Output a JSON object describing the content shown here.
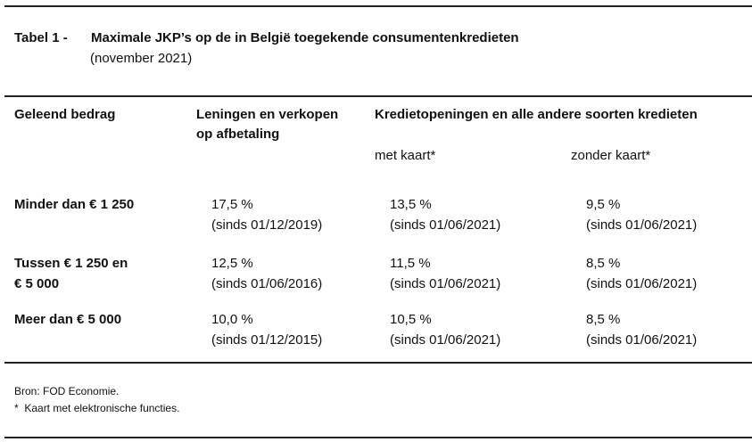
{
  "title": {
    "label": "Tabel 1 -",
    "text": "Maximale JKP’s op de in België toegekende consumentenkredieten",
    "subtitle": "(november 2021)"
  },
  "headers": {
    "amount": "Geleend bedrag",
    "loans_line1": "Leningen en verkopen",
    "loans_line2": "op afbetaling",
    "credit": "Kredietopeningen en alle andere soorten kredieten",
    "with_card": "met kaart*",
    "without_card": "zonder kaart*"
  },
  "rows": [
    {
      "amount_line1": "Minder dan € 1 250",
      "amount_line2": "",
      "loans": {
        "rate": "17,5 %",
        "since": "(sinds 01/12/2019)"
      },
      "with_card": {
        "rate": "13,5 %",
        "since": "(sinds 01/06/2021)"
      },
      "without_card": {
        "rate": "9,5 %",
        "since": "(sinds 01/06/2021)"
      }
    },
    {
      "amount_line1": "Tussen € 1 250 en",
      "amount_line2": "€ 5 000",
      "loans": {
        "rate": "12,5 %",
        "since": "(sinds 01/06/2016)"
      },
      "with_card": {
        "rate": "11,5 %",
        "since": "(sinds 01/06/2021)"
      },
      "without_card": {
        "rate": "8,5 %",
        "since": "(sinds 01/06/2021)"
      }
    },
    {
      "amount_line1": "Meer dan € 5 000",
      "amount_line2": "",
      "loans": {
        "rate": "10,0 %",
        "since": "(sinds 01/12/2015)"
      },
      "with_card": {
        "rate": "10,5 %",
        "since": "(sinds 01/06/2021)"
      },
      "without_card": {
        "rate": "8,5 %",
        "since": "(sinds 01/06/2021)"
      }
    }
  ],
  "footnotes": {
    "source": "Bron: FOD Economie.",
    "note": "*  Kaart met elektronische functies."
  }
}
